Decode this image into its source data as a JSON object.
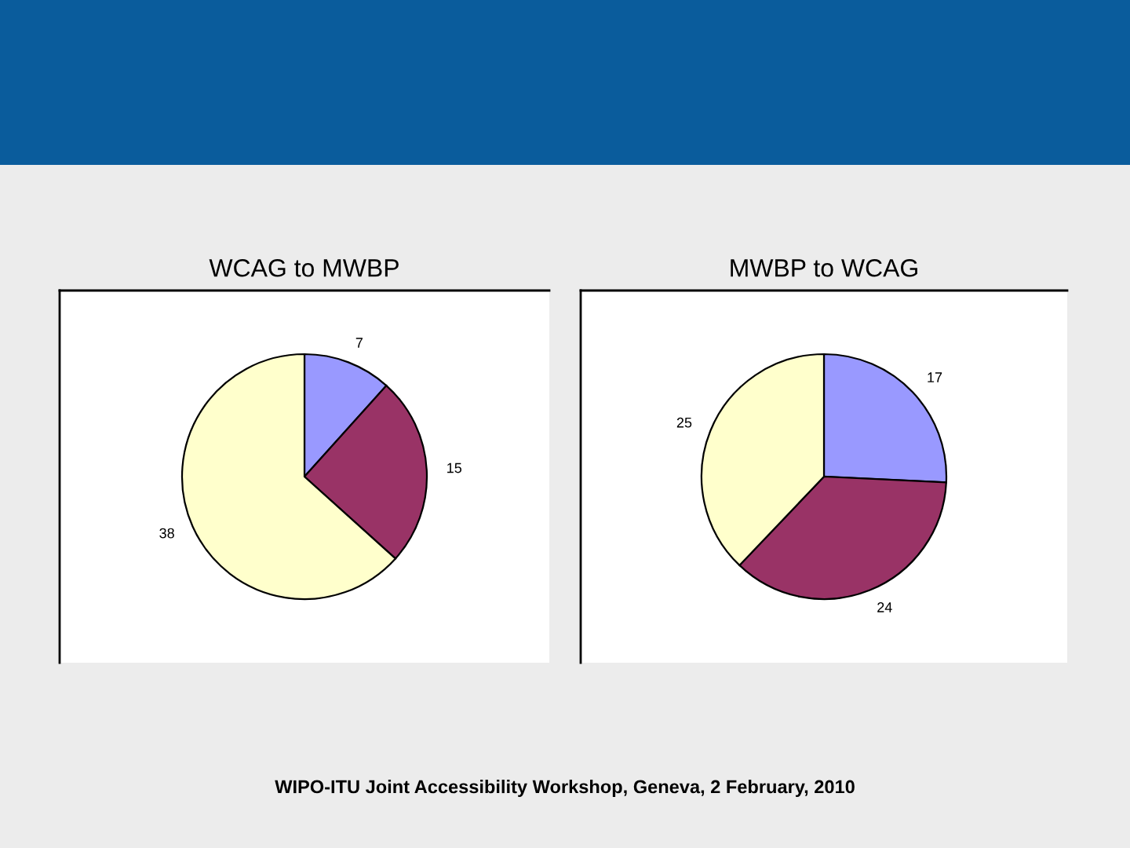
{
  "chart_data": [
    {
      "type": "pie",
      "title": "WCAG to MWBP",
      "categories": [
        null,
        null,
        null
      ],
      "values": [
        7,
        15,
        38
      ],
      "colors": [
        "#9999ff",
        "#993366",
        "#ffffcc"
      ],
      "data_labels": true,
      "annotations": [
        "WIPO-ITU Joint Accessibility Workshop, Geneva, 2 February, 2010"
      ]
    },
    {
      "type": "pie",
      "title": "MWBP to WCAG",
      "categories": [
        null,
        null,
        null
      ],
      "values": [
        17,
        24,
        25
      ],
      "colors": [
        "#9999ff",
        "#993366",
        "#ffffcc"
      ],
      "data_labels": true
    }
  ]
}
